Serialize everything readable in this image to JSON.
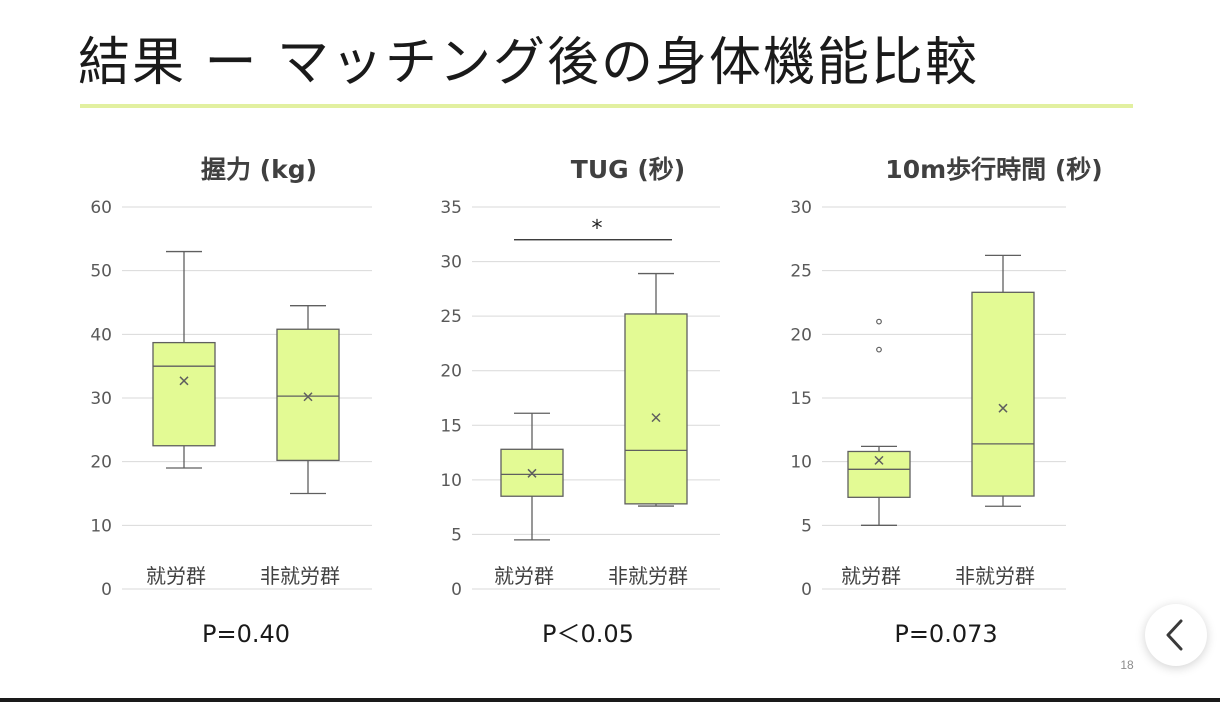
{
  "slide": {
    "title": "結果 ー マッチング後の身体機能比較",
    "page_number": "18"
  },
  "colors": {
    "box_fill": "#e3fa94",
    "box_stroke": "#5f5f5f",
    "grid": "#d9d9d9",
    "title_rule": "#e2f0a0"
  },
  "icons": {
    "back": "chevron-left-icon"
  },
  "chart_data": [
    {
      "type": "box",
      "title": "握力 (kg)",
      "categories": [
        "就労群",
        "非就労群"
      ],
      "ylim": [
        0,
        60
      ],
      "yticks": [
        0,
        10,
        20,
        30,
        40,
        50,
        60
      ],
      "grid": true,
      "series": [
        {
          "category": "就労群",
          "min": 19,
          "q1": 22.5,
          "median": 35,
          "q3": 38.7,
          "max": 53,
          "mean": 32.7,
          "outliers": []
        },
        {
          "category": "非就労群",
          "min": 15,
          "q1": 20.2,
          "median": 30.3,
          "q3": 40.8,
          "max": 44.5,
          "mean": 30.2,
          "outliers": []
        }
      ],
      "p_value": "P=0.40",
      "significance": null
    },
    {
      "type": "box",
      "title": "TUG (秒)",
      "categories": [
        "就労群",
        "非就労群"
      ],
      "ylim": [
        0,
        35
      ],
      "yticks": [
        0,
        5,
        10,
        15,
        20,
        25,
        30,
        35
      ],
      "grid": true,
      "series": [
        {
          "category": "就労群",
          "min": 4.5,
          "q1": 8.5,
          "median": 10.5,
          "q3": 12.8,
          "max": 16.1,
          "mean": 10.6,
          "outliers": []
        },
        {
          "category": "非就労群",
          "min": 7.6,
          "q1": 7.8,
          "median": 12.7,
          "q3": 25.2,
          "max": 28.9,
          "mean": 15.7,
          "outliers": []
        }
      ],
      "p_value": "P＜0.05",
      "significance": {
        "label": "*",
        "from": "就労群",
        "to": "非就労群",
        "y": 32
      }
    },
    {
      "type": "box",
      "title": "10m歩行時間 (秒)",
      "categories": [
        "就労群",
        "非就労群"
      ],
      "ylim": [
        0,
        30
      ],
      "yticks": [
        0,
        5,
        10,
        15,
        20,
        25,
        30
      ],
      "grid": true,
      "series": [
        {
          "category": "就労群",
          "min": 5.0,
          "q1": 7.2,
          "median": 9.4,
          "q3": 10.8,
          "max": 11.2,
          "mean": 10.1,
          "outliers": [
            18.8,
            21.0
          ]
        },
        {
          "category": "非就労群",
          "min": 6.5,
          "q1": 7.3,
          "median": 11.4,
          "q3": 23.3,
          "max": 26.2,
          "mean": 14.2,
          "outliers": []
        }
      ],
      "p_value": "P=0.073",
      "significance": null
    }
  ]
}
